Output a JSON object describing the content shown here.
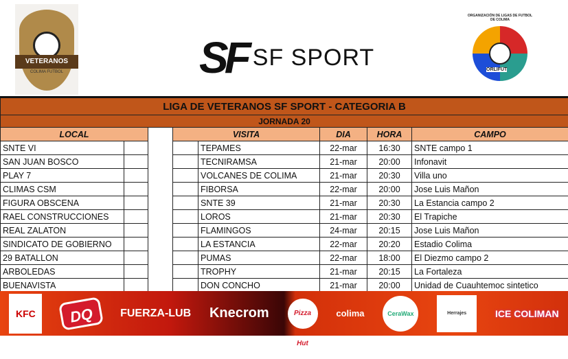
{
  "header": {
    "left_logo": {
      "name": "VETERANOS",
      "sub": "COLIMA FUTBOL"
    },
    "center_logo": {
      "mark": "SF",
      "text": "SF SPORT"
    },
    "right_logo": {
      "ring_text": "ORGANIZACIÓN DE LIGAS DE FUTBOL DE COLIMA",
      "label": "ORLIFUT"
    }
  },
  "table": {
    "title": "LIGA DE VETERANOS SF SPORT - CATEGORIA B",
    "subtitle": "JORNADA 20",
    "columns": {
      "local": "LOCAL",
      "visita": "VISITA",
      "dia": "DIA",
      "hora": "HORA",
      "campo": "CAMPO"
    },
    "rows": [
      {
        "local": "SNTE VI",
        "visita": "TEPAMES",
        "dia": "22-mar",
        "hora": "16:30",
        "campo": "SNTE campo 1"
      },
      {
        "local": "SAN JUAN BOSCO",
        "visita": "TECNIRAMSA",
        "dia": "21-mar",
        "hora": "20:00",
        "campo": "Infonavit"
      },
      {
        "local": "PLAY 7",
        "visita": "VOLCANES DE COLIMA",
        "dia": "21-mar",
        "hora": "20:30",
        "campo": "Villa uno"
      },
      {
        "local": "CLIMAS CSM",
        "visita": "FIBORSA",
        "dia": "22-mar",
        "hora": "20:00",
        "campo": "Jose Luis Mañon"
      },
      {
        "local": "FIGURA OBSCENA",
        "visita": "SNTE 39",
        "dia": "21-mar",
        "hora": "20:30",
        "campo": "La Estancia campo 2"
      },
      {
        "local": "RAEL CONSTRUCCIONES",
        "visita": "LOROS",
        "dia": "21-mar",
        "hora": "20:30",
        "campo": "El Trapiche"
      },
      {
        "local": "REAL ZALATON",
        "visita": "FLAMINGOS",
        "dia": "24-mar",
        "hora": "20:15",
        "campo": "Jose Luis Mañon"
      },
      {
        "local": "SINDICATO DE GOBIERNO",
        "visita": "LA ESTANCIA",
        "dia": "22-mar",
        "hora": "20:20",
        "campo": "Estadio Colima"
      },
      {
        "local": "29 BATALLON",
        "visita": "PUMAS",
        "dia": "22-mar",
        "hora": "18:00",
        "campo": "El Diezmo campo 2"
      },
      {
        "local": "ARBOLEDAS",
        "visita": "TROPHY",
        "dia": "21-mar",
        "hora": "20:15",
        "campo": "La Fortaleza"
      },
      {
        "local": "BUENAVISTA",
        "visita": "DON CONCHO",
        "dia": "21-mar",
        "hora": "20:00",
        "campo": "Unidad de Cuauhtemoc sintetico"
      }
    ]
  },
  "sponsors": [
    "KFC",
    "DQ",
    "FUERZA-LUB",
    "Knecrom",
    "Pizza Hut",
    "colima",
    "CeraWax",
    "Herrajes",
    "ICE COLIMAN"
  ],
  "colors": {
    "title_bg": "#c0561a",
    "header_bg": "#f4b183"
  }
}
